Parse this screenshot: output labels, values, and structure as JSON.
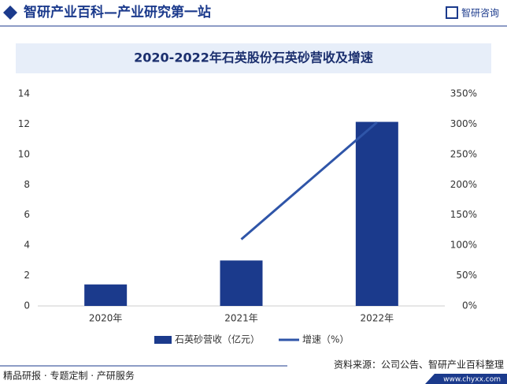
{
  "header": {
    "title": "智研产业百科—产业研究第一站",
    "logo": "智研咨询"
  },
  "footer": {
    "left": "精品研报 · 专题定制 · 产研服务",
    "source": "资料来源：公司公告、智研产业百科整理",
    "url": "www.chyxx.com"
  },
  "chart_data": {
    "type": "bar",
    "title": "2020-2022年石英股份石英砂营收及增速",
    "categories": [
      "2020年",
      "2021年",
      "2022年"
    ],
    "series": [
      {
        "name": "石英砂营收（亿元）",
        "color": "#1b3a8c",
        "type": "bar",
        "values": [
          1.42,
          3.0,
          12.15
        ]
      },
      {
        "name": "增速（%）",
        "color": "#2f55a8",
        "type": "line",
        "axis": "y2",
        "values": [
          null,
          110,
          303
        ]
      }
    ],
    "ylim": [
      0,
      14
    ],
    "yticks": [
      0,
      2,
      4,
      6,
      8,
      10,
      12,
      14
    ],
    "y2lim": [
      0,
      350
    ],
    "y2ticks": [
      {
        "value": 0,
        "label": "0%"
      },
      {
        "value": 50,
        "label": "50%"
      },
      {
        "value": 100,
        "label": "100%"
      },
      {
        "value": 150,
        "label": "150%"
      },
      {
        "value": 200,
        "label": "200%"
      },
      {
        "value": 250,
        "label": "250%"
      },
      {
        "value": 300,
        "label": "300%"
      },
      {
        "value": 350,
        "label": "350%"
      }
    ],
    "legend": "bottom"
  }
}
